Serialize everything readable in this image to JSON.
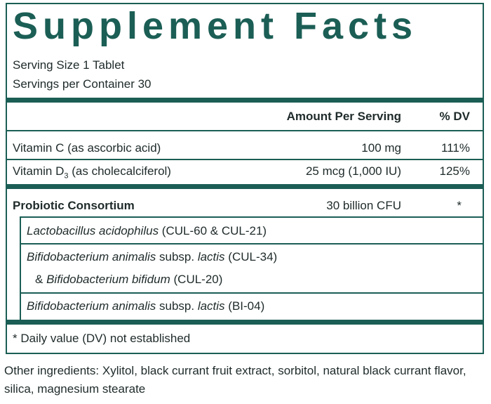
{
  "title": "Supplement Facts",
  "serving": {
    "size": "Serving Size 1 Tablet",
    "per_container": "Servings per Container 30"
  },
  "header": {
    "amount": "Amount Per Serving",
    "dv": "% DV"
  },
  "vitamins": [
    {
      "name": "Vitamin C (as ascorbic acid)",
      "amount": "100 mg",
      "dv": "111%"
    },
    {
      "name": "Vitamin D",
      "name_sub": "3",
      "name_rest": "(as cholecalciferol)",
      "amount": "25 mcg (1,000 IU)",
      "dv": "125%"
    }
  ],
  "blend": {
    "name": "Probiotic Consortium",
    "amount": "30 billion CFU",
    "dv": "*",
    "strains": [
      [
        "Lactobacillus acidophilus",
        "(CUL-60 & CUL-21)"
      ],
      [
        "Bifidobacterium animalis",
        "subsp.",
        "lactis",
        "(CUL-34)",
        "&",
        "Bifidobacterium bifidum",
        "(CUL-20)"
      ],
      [
        "Bifidobacterium animalis",
        "subsp.",
        "lactis",
        "(BI-04)"
      ]
    ]
  },
  "footnote": "* Daily value (DV) not established",
  "other_ingredients": "Other ingredients: Xylitol, black currant fruit extract, sorbitol, natural black currant flavor, silica, magnesium stearate"
}
